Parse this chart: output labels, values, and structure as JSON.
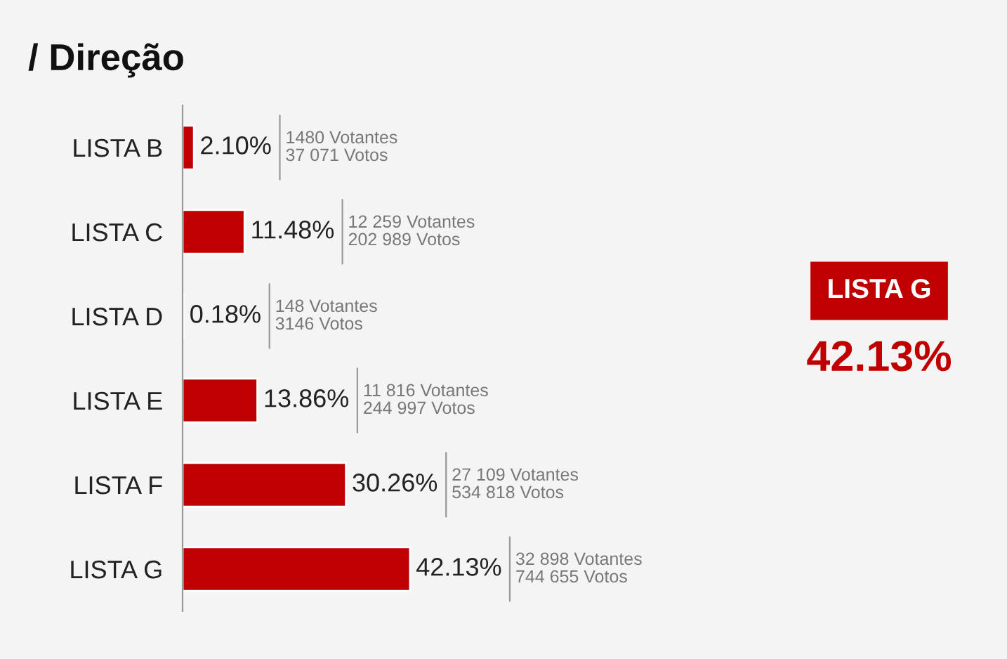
{
  "chart_data": {
    "type": "bar",
    "orientation": "horizontal",
    "title": "/ Direção",
    "categories": [
      "LISTA B",
      "LISTA C",
      "LISTA D",
      "LISTA E",
      "LISTA F",
      "LISTA G"
    ],
    "values": [
      2.1,
      11.48,
      0.18,
      13.86,
      30.26,
      42.13
    ],
    "value_labels": [
      "2.10%",
      "11.48%",
      "0.18%",
      "13.86%",
      "30.26%",
      "42.13%"
    ],
    "color": "#c00000",
    "annotations": [
      "1480 Votantes\n37 071 Votos",
      "12 259 Votantes\n202 989 Votos",
      "148 Votantes\n3146 Votos",
      "11 816 Votantes\n244 997 Votos",
      "27 109 Votantes\n534 818 Votos",
      "32 898 Votantes\n744 655 Votos",
      "LISTA G",
      "42.13%"
    ]
  }
}
